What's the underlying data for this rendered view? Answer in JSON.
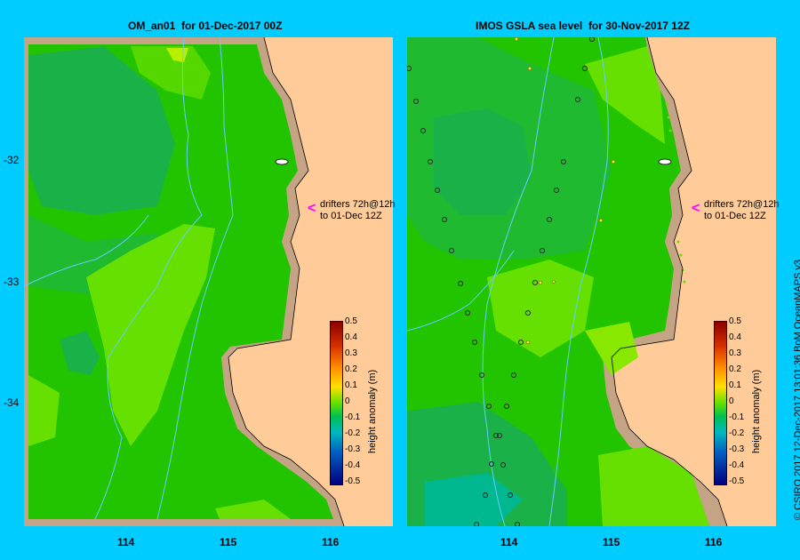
{
  "left_panel": {
    "title": "OM_an01  for 01-Dec-2017 00Z",
    "annotation": "drifters 72h@12h\nto 01-Dec 12Z",
    "colorbar_label": "height anomaly (m)"
  },
  "right_panel": {
    "title": "IMOS GSLA sea level  for 30-Nov-2017 12Z",
    "annotation": "drifters 72h@12h\nto 01-Dec 12Z",
    "colorbar_label": "height anomaly (m)"
  },
  "y_ticks": [
    "-32",
    "-33",
    "-34"
  ],
  "x_ticks": [
    "114",
    "115",
    "116"
  ],
  "colorbar_ticks": [
    "0.5",
    "0.4",
    "0.3",
    "0.2",
    "0.1",
    "0",
    "-0.1",
    "-0.2",
    "-0.3",
    "-0.4",
    "-0.5"
  ],
  "credit": "© CSIRO 2017   12-Dec-2017 13:01:36 BoM OceanMAPS v3",
  "colors": {
    "background": "#00ccff",
    "land": "#ffcc99",
    "shelf": "#c4a484",
    "sea_low": "#00b050",
    "sea_mid": "#22c400",
    "sea_high": "#66e000",
    "bathymetry": "#66ccff",
    "arrow": "#ff00ff"
  }
}
